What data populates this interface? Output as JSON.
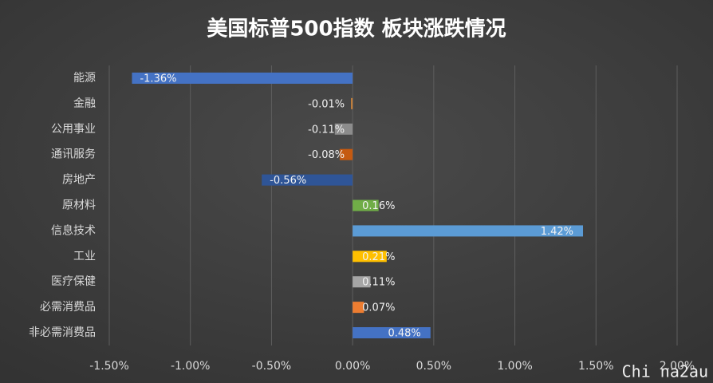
{
  "chart_data": {
    "type": "bar",
    "orientation": "horizontal",
    "title": "美国标普500指数 板块涨跌情况",
    "categories": [
      "能源",
      "金融",
      "公用事业",
      "通讯服务",
      "房地产",
      "原材料",
      "信息技术",
      "工业",
      "医疗保健",
      "必需消费品",
      "非必需消费品"
    ],
    "values": [
      -1.36,
      -0.01,
      -0.11,
      -0.08,
      -0.56,
      0.16,
      1.42,
      0.21,
      0.11,
      0.07,
      0.48
    ],
    "value_labels": [
      "-1.36%",
      "-0.01%",
      "-0.11%",
      "-0.08%",
      "-0.56%",
      "0.16%",
      "1.42%",
      "0.21%",
      "0.11%",
      "0.07%",
      "0.48%"
    ],
    "colors": [
      "#4472c4",
      "#c8823c",
      "#8c8c8c",
      "#c55a11",
      "#2f5597",
      "#70ad47",
      "#5b9bd5",
      "#ffc000",
      "#a5a5a5",
      "#ed7d31",
      "#4472c4"
    ],
    "xlim": [
      -1.5,
      2.0
    ],
    "xticks": [
      {
        "value": -1.5,
        "label": "-1.50%"
      },
      {
        "value": -1.0,
        "label": "-1.00%"
      },
      {
        "value": -0.5,
        "label": "-0.50%"
      },
      {
        "value": 0,
        "label": "0.00%"
      },
      {
        "value": 0.5,
        "label": "0.50%"
      },
      {
        "value": 1.0,
        "label": "1.00%"
      },
      {
        "value": 1.5,
        "label": "1.50%"
      },
      {
        "value": 2.0,
        "label": "2.00%"
      }
    ],
    "grid": true,
    "watermark": "Chi na2au"
  }
}
